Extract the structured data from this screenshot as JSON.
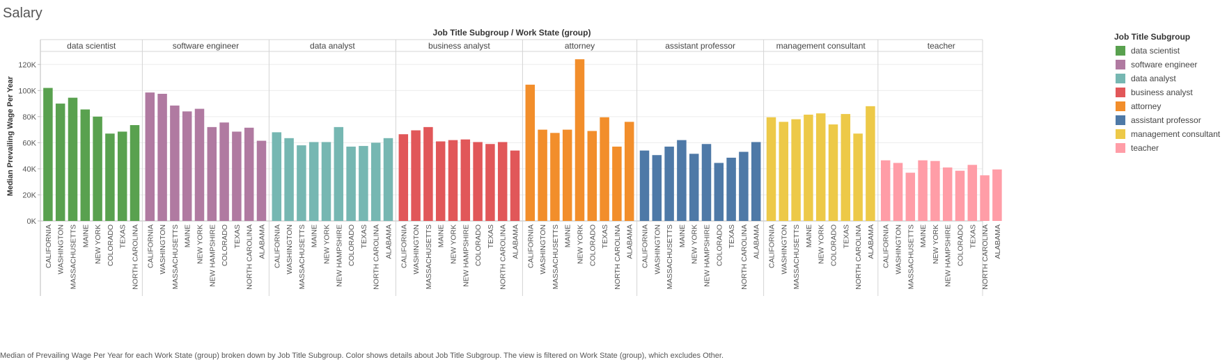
{
  "page": {
    "title": "Salary",
    "caption": "Median of Prevailing Wage Per Year for each Work State (group) broken down by Job Title Subgroup.  Color shows details about Job Title Subgroup. The view is filtered on Work State (group), which excludes Other."
  },
  "chart_data": {
    "type": "bar",
    "title": "Job Title Subgroup  /  Work State (group)",
    "ylabel": "Median Prevailing Wage Per Year",
    "xlabel": "",
    "ylim": [
      0,
      130000
    ],
    "yticks": [
      0,
      20000,
      40000,
      60000,
      80000,
      100000,
      120000
    ],
    "ytick_labels": [
      "0K",
      "20K",
      "40K",
      "60K",
      "80K",
      "100K",
      "120K"
    ],
    "grid": true,
    "legend": {
      "title": "Job Title Subgroup",
      "placement": "right",
      "entries": [
        {
          "name": "data scientist",
          "color": "#59a14f"
        },
        {
          "name": "software engineer",
          "color": "#b07aa1"
        },
        {
          "name": "data analyst",
          "color": "#76b7b2"
        },
        {
          "name": "business analyst",
          "color": "#e15759"
        },
        {
          "name": "attorney",
          "color": "#f28e2b"
        },
        {
          "name": "assistant professor",
          "color": "#4e79a7"
        },
        {
          "name": "management consultant",
          "color": "#edc948"
        },
        {
          "name": "teacher",
          "color": "#ff9da7"
        }
      ]
    },
    "panels": [
      {
        "name": "data scientist",
        "color": "#59a14f",
        "categories": [
          "CALIFORNIA",
          "WASHINGTON",
          "MASSACHUSETTS",
          "MAINE",
          "NEW YORK",
          "COLORADO",
          "TEXAS",
          "NORTH CAROLINA"
        ],
        "values": [
          102000,
          90000,
          94500,
          85500,
          80000,
          67000,
          68500,
          73500
        ]
      },
      {
        "name": "software engineer",
        "color": "#b07aa1",
        "categories": [
          "CALIFORNIA",
          "WASHINGTON",
          "MASSACHUSETTS",
          "MAINE",
          "NEW YORK",
          "NEW HAMPSHIRE",
          "COLORADO",
          "TEXAS",
          "NORTH CAROLINA",
          "ALABAMA"
        ],
        "values": [
          98500,
          97500,
          88500,
          84000,
          86000,
          72000,
          75500,
          68500,
          71500,
          61500
        ]
      },
      {
        "name": "data analyst",
        "color": "#76b7b2",
        "categories": [
          "CALIFORNIA",
          "WASHINGTON",
          "MASSACHUSETTS",
          "MAINE",
          "NEW YORK",
          "NEW HAMPSHIRE",
          "COLORADO",
          "TEXAS",
          "NORTH CAROLINA",
          "ALABAMA"
        ],
        "values": [
          68000,
          63500,
          58000,
          60500,
          60500,
          72000,
          57000,
          57500,
          60000,
          63500
        ]
      },
      {
        "name": "business analyst",
        "color": "#e15759",
        "categories": [
          "CALIFORNIA",
          "WASHINGTON",
          "MASSACHUSETTS",
          "MAINE",
          "NEW YORK",
          "NEW HAMPSHIRE",
          "COLORADO",
          "TEXAS",
          "NORTH CAROLINA",
          "ALABAMA"
        ],
        "values": [
          66500,
          69500,
          72000,
          61000,
          62000,
          62500,
          60500,
          59000,
          60500,
          54000
        ]
      },
      {
        "name": "attorney",
        "color": "#f28e2b",
        "categories": [
          "CALIFORNIA",
          "WASHINGTON",
          "MASSACHUSETTS",
          "MAINE",
          "NEW YORK",
          "COLORADO",
          "TEXAS",
          "NORTH CAROLINA",
          "ALABAMA"
        ],
        "values": [
          104500,
          70000,
          67500,
          70000,
          124000,
          69000,
          79500,
          57000,
          76000
        ]
      },
      {
        "name": "assistant professor",
        "color": "#4e79a7",
        "categories": [
          "CALIFORNIA",
          "WASHINGTON",
          "MASSACHUSETTS",
          "MAINE",
          "NEW YORK",
          "NEW HAMPSHIRE",
          "COLORADO",
          "TEXAS",
          "NORTH CAROLINA",
          "ALABAMA"
        ],
        "values": [
          54000,
          50500,
          57000,
          62000,
          51500,
          59000,
          44500,
          48500,
          53000,
          60500
        ]
      },
      {
        "name": "management consultant",
        "color": "#edc948",
        "categories": [
          "CALIFORNIA",
          "WASHINGTON",
          "MASSACHUSETTS",
          "MAINE",
          "NEW YORK",
          "COLORADO",
          "TEXAS",
          "NORTH CAROLINA",
          "ALABAMA"
        ],
        "values": [
          79500,
          76000,
          78000,
          81500,
          82500,
          74000,
          82000,
          67000,
          88000
        ]
      },
      {
        "name": "teacher",
        "color": "#ff9da7",
        "categories": [
          "CALIFORNIA",
          "WASHINGTON",
          "MASSACHUSETTS",
          "MAINE",
          "NEW YORK",
          "NEW HAMPSHIRE",
          "COLORADO",
          "TEXAS",
          "NORTH CAROLINA",
          "ALABAMA"
        ],
        "values": [
          46500,
          44500,
          37000,
          46500,
          46000,
          41000,
          38500,
          43000,
          35000,
          39500
        ]
      }
    ]
  }
}
